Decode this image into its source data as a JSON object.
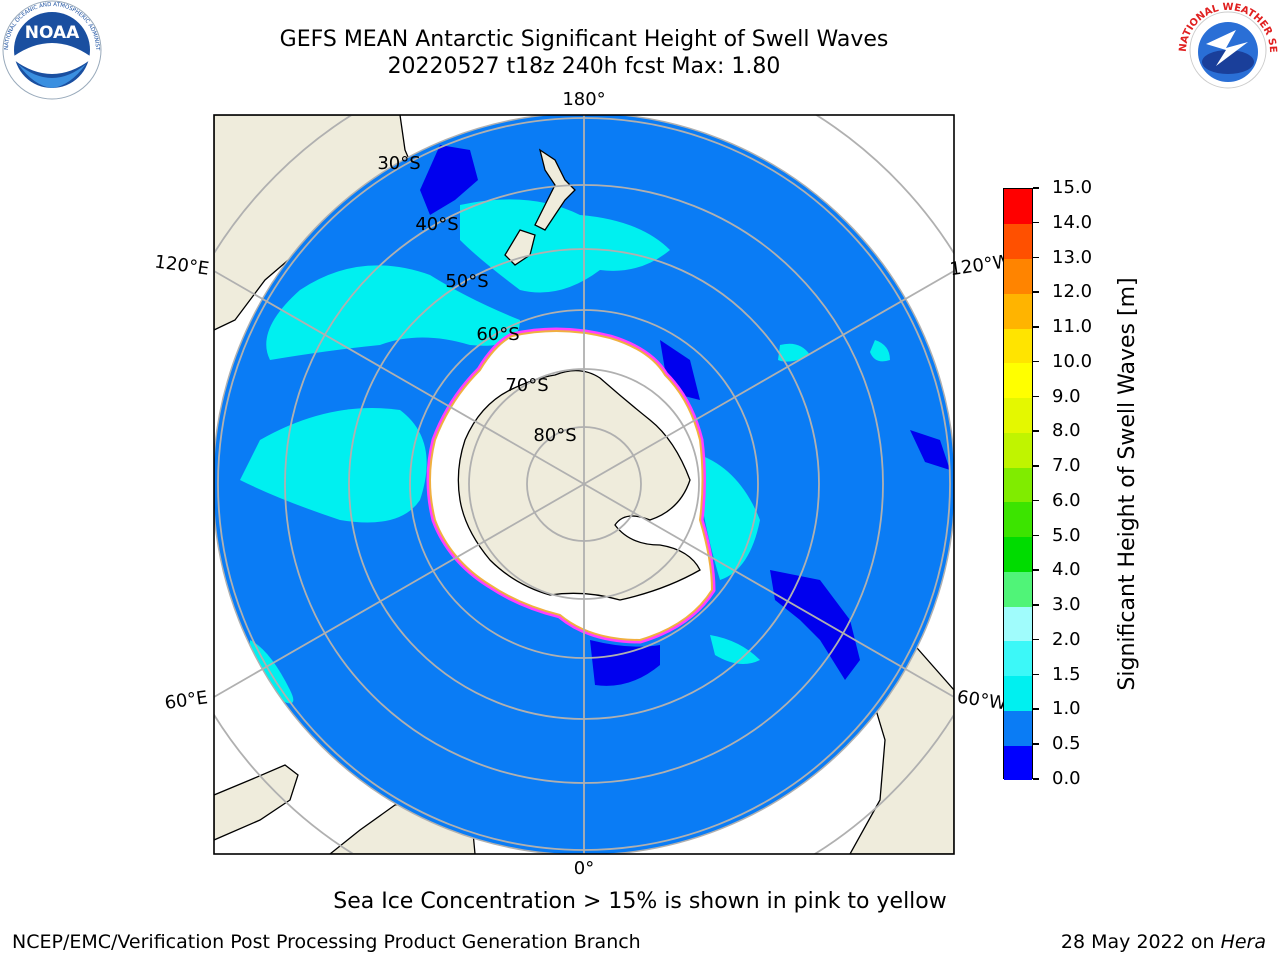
{
  "title": {
    "line1": "GEFS MEAN Antarctic Significant Height of Swell Waves",
    "line2": "20220527 t18z 240h fcst   Max: 1.80"
  },
  "logos": {
    "left": "NOAA",
    "left_ring_text": "NATIONAL OCEANIC AND ATMOSPHERIC ADMINISTRATION · U.S. DEPARTMENT OF COMMERCE",
    "right_ring_text": "NATIONAL WEATHER SERVICE"
  },
  "map": {
    "projection": "south-polar-stereographic",
    "lon_labels": {
      "top": "180°",
      "bottom": "0°",
      "left_upper": "120°E",
      "left_lower": "60°E",
      "right_upper": "120°W",
      "right_lower": "60°W"
    },
    "lat_labels": [
      "30°S",
      "40°S",
      "50°S",
      "60°S",
      "70°S",
      "80°S"
    ],
    "colors": {
      "ocean_deep": "#0a7cf5",
      "calm": "#0000ee",
      "land": "#efecdc",
      "ice": "#ffffff",
      "grid": "#b0b0b0",
      "swell_cyan": "#00f0f0",
      "swell_light": "#40ffff"
    }
  },
  "colorbar": {
    "label": "Significant Height of Swell Waves [m]",
    "levels": [
      "0.0",
      "0.5",
      "1.0",
      "1.5",
      "2.0",
      "3.0",
      "4.0",
      "5.0",
      "6.0",
      "7.0",
      "8.0",
      "9.0",
      "10.0",
      "11.0",
      "12.0",
      "13.0",
      "14.0",
      "15.0"
    ],
    "colors": [
      "#0000ff",
      "#0a7cf5",
      "#00f0f0",
      "#3cf8f8",
      "#a0fcfc",
      "#50f478",
      "#00dc00",
      "#3ce400",
      "#80ec00",
      "#c0f400",
      "#e4f800",
      "#ffff00",
      "#ffe400",
      "#ffb400",
      "#ff8400",
      "#ff5000",
      "#ff0000"
    ]
  },
  "ice_note": "Sea Ice Concentration > 15% is shown in pink to yellow",
  "footer": {
    "left": "NCEP/EMC/Verification Post Processing Product Generation Branch",
    "right_prefix": "28 May 2022 on ",
    "right_machine": "Hera"
  }
}
